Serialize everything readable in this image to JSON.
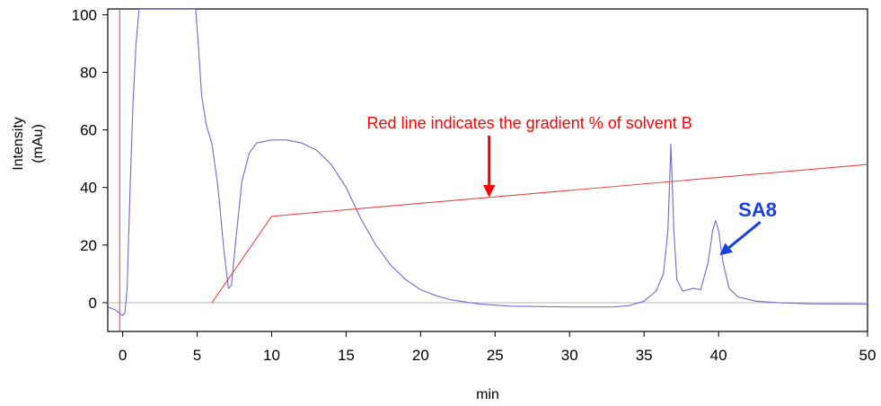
{
  "chart_data": {
    "type": "line",
    "title": "",
    "xlabel": "min",
    "ylabel_lines": [
      "Intensity",
      "(mAu)"
    ],
    "xlim": [
      -1,
      50
    ],
    "ylim": [
      -10,
      102
    ],
    "x_ticks": [
      0,
      5,
      10,
      15,
      20,
      25,
      30,
      35,
      40,
      50
    ],
    "y_ticks": [
      0,
      20,
      40,
      60,
      80,
      100
    ],
    "grid": false,
    "baseline_y": 0,
    "series": [
      {
        "color": "#6b6bd6",
        "points": [
          [
            -1.0,
            -1.5
          ],
          [
            -0.5,
            -2.5
          ],
          [
            0.0,
            -4.5
          ],
          [
            0.15,
            -3.5
          ],
          [
            0.3,
            5
          ],
          [
            0.5,
            40
          ],
          [
            0.7,
            70
          ],
          [
            0.9,
            90
          ],
          [
            1.1,
            102
          ],
          [
            4.9,
            102
          ],
          [
            5.1,
            88
          ],
          [
            5.3,
            72
          ],
          [
            5.6,
            62
          ],
          [
            6.0,
            55
          ],
          [
            6.4,
            40
          ],
          [
            6.8,
            18
          ],
          [
            7.1,
            5
          ],
          [
            7.3,
            6
          ],
          [
            7.6,
            22
          ],
          [
            8.0,
            42
          ],
          [
            8.5,
            52
          ],
          [
            9.0,
            55.5
          ],
          [
            10.0,
            56.5
          ],
          [
            11.0,
            56.5
          ],
          [
            12.0,
            55.5
          ],
          [
            13.0,
            53
          ],
          [
            14.0,
            48
          ],
          [
            15.0,
            40
          ],
          [
            16.0,
            29
          ],
          [
            17.0,
            20
          ],
          [
            18.0,
            13
          ],
          [
            19.0,
            8
          ],
          [
            20.0,
            4.5
          ],
          [
            21.0,
            2.5
          ],
          [
            22.0,
            1
          ],
          [
            24.0,
            -0.5
          ],
          [
            26.0,
            -1.2
          ],
          [
            30.0,
            -1.5
          ],
          [
            33.0,
            -1.5
          ],
          [
            34.0,
            -1
          ],
          [
            35.0,
            0.5
          ],
          [
            35.8,
            4
          ],
          [
            36.3,
            10
          ],
          [
            36.6,
            25
          ],
          [
            36.8,
            55
          ],
          [
            37.0,
            25
          ],
          [
            37.2,
            8
          ],
          [
            37.6,
            4
          ],
          [
            38.3,
            5
          ],
          [
            38.8,
            4.5
          ],
          [
            39.3,
            14
          ],
          [
            39.6,
            25
          ],
          [
            39.8,
            28.5
          ],
          [
            40.0,
            25
          ],
          [
            40.3,
            14
          ],
          [
            40.7,
            5
          ],
          [
            41.3,
            2
          ],
          [
            42.5,
            0.5
          ],
          [
            44.0,
            0
          ],
          [
            46.0,
            -0.4
          ],
          [
            50.0,
            -0.5
          ]
        ]
      },
      {
        "color": "#ee4444",
        "points": [
          [
            -0.2,
            102
          ],
          [
            -0.2,
            -10
          ]
        ]
      },
      {
        "color": "#ee4444",
        "points": [
          [
            6.0,
            0
          ],
          [
            10.0,
            30
          ],
          [
            50.0,
            48
          ]
        ]
      }
    ],
    "annotations": [
      {
        "text": "Red line indicates the gradient % of solvent B",
        "color": "#ff0000",
        "arrow_from": [
          24.6,
          58
        ],
        "arrow_to": [
          24.6,
          37.5
        ]
      },
      {
        "text": "SA8",
        "color": "#1a3fe0",
        "arrow_from": [
          42.8,
          28
        ],
        "arrow_to": [
          40.2,
          17
        ]
      }
    ]
  }
}
